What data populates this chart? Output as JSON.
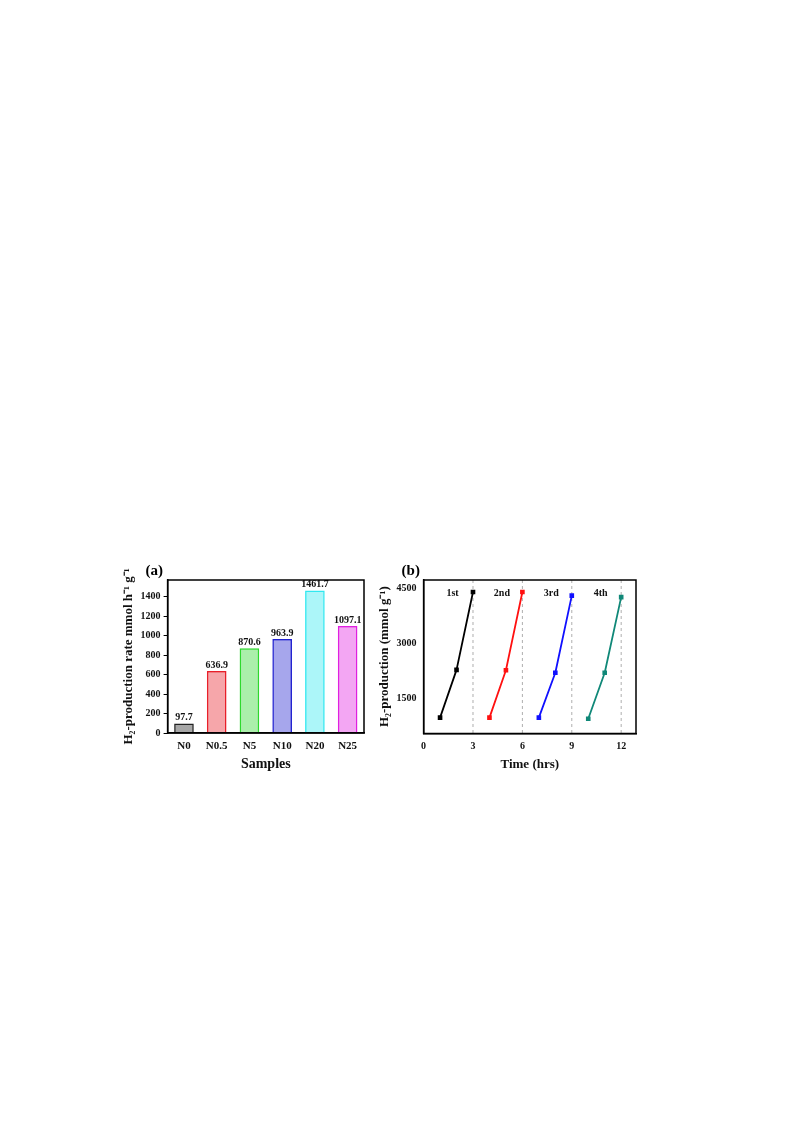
{
  "chart_data": [
    {
      "type": "bar",
      "title": "(a)",
      "xlabel": "Samples",
      "ylabel": "H₂-production rate mmol h⁻¹ g⁻¹",
      "categories": [
        "N0",
        "N0.5",
        "N5",
        "N10",
        "N20",
        "N25"
      ],
      "values": [
        97.7,
        636.9,
        870.6,
        963.9,
        1461.7,
        1097.1
      ],
      "colors": [
        "#222222",
        "#e8202a",
        "#2ed82e",
        "#2020d0",
        "#30e8f0",
        "#e020e0"
      ],
      "data_labels": true,
      "ylim": [
        0,
        1570
      ],
      "yticks": [
        0,
        200,
        400,
        600,
        800,
        1000,
        1200,
        1400
      ],
      "grid": false,
      "legend": false
    },
    {
      "type": "line",
      "title": "(b)",
      "xlabel": "Time (hrs)",
      "ylabel": "H₂-production (mmol g⁻¹)",
      "xlim": [
        0,
        12.9
      ],
      "xticks": [
        0,
        3,
        6,
        9,
        12
      ],
      "ylim": [
        550,
        4725
      ],
      "yticks": [
        1500,
        3000,
        4500
      ],
      "grid": false,
      "legend": false,
      "marker": "square",
      "line_style": "solid",
      "series": [
        {
          "color": "#000000",
          "x": [
            1,
            2,
            3
          ],
          "values": [
            980,
            2280,
            4400
          ]
        },
        {
          "color": "#ff1010",
          "x": [
            4,
            5,
            6
          ],
          "values": [
            980,
            2270,
            4400
          ]
        },
        {
          "color": "#1010ff",
          "x": [
            7,
            8,
            9
          ],
          "values": [
            980,
            2200,
            4300
          ]
        },
        {
          "color": "#108878",
          "x": [
            10,
            11,
            12
          ],
          "values": [
            950,
            2200,
            4260
          ]
        }
      ],
      "ref_lines": [
        {
          "axis": "x",
          "value": 3,
          "color": "#999999",
          "line_style": "dashed"
        },
        {
          "axis": "x",
          "value": 6,
          "color": "#999999",
          "line_style": "dashed"
        },
        {
          "axis": "x",
          "value": 9,
          "color": "#999999",
          "line_style": "dashed"
        },
        {
          "axis": "x",
          "value": 12,
          "color": "#999999",
          "line_style": "dashed"
        }
      ],
      "annotations": [
        "1st",
        "2nd",
        "3rd",
        "4th"
      ]
    }
  ]
}
